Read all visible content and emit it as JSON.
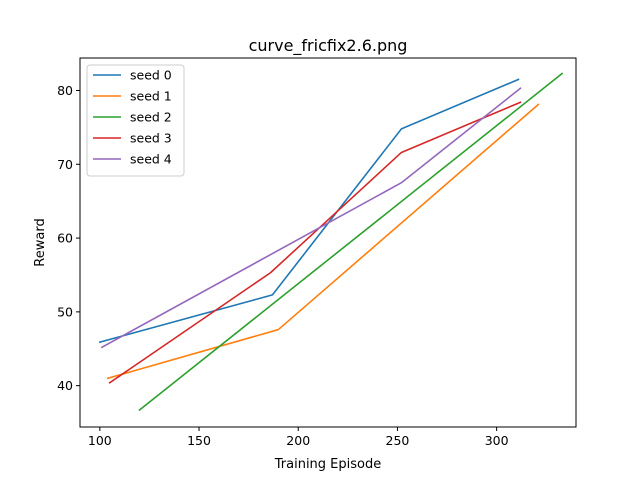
{
  "chart_data": {
    "type": "line",
    "title": "curve_fricfix2.6.png",
    "xlabel": "Training Episode",
    "ylabel": "Reward",
    "xlim": [
      90,
      340
    ],
    "ylim": [
      34.4,
      84.4
    ],
    "xticks": [
      100,
      150,
      200,
      250,
      300
    ],
    "yticks": [
      40,
      50,
      60,
      70,
      80
    ],
    "grid": false,
    "legend_position": "top-left",
    "series": [
      {
        "name": "seed 0",
        "color": "#1f77b4",
        "x": [
          100,
          187,
          252,
          311
        ],
        "y": [
          45.9,
          52.3,
          74.8,
          81.5
        ]
      },
      {
        "name": "seed 1",
        "color": "#ff7f0e",
        "x": [
          104,
          190,
          321
        ],
        "y": [
          41.0,
          47.6,
          78.1
        ]
      },
      {
        "name": "seed 2",
        "color": "#2ca02c",
        "x": [
          120,
          333
        ],
        "y": [
          36.7,
          82.3
        ]
      },
      {
        "name": "seed 3",
        "color": "#d62728",
        "x": [
          105,
          186,
          252,
          312
        ],
        "y": [
          40.4,
          55.3,
          71.6,
          78.4
        ]
      },
      {
        "name": "seed 4",
        "color": "#9467bd",
        "x": [
          101,
          252,
          312
        ],
        "y": [
          45.2,
          67.5,
          80.3
        ]
      }
    ]
  }
}
